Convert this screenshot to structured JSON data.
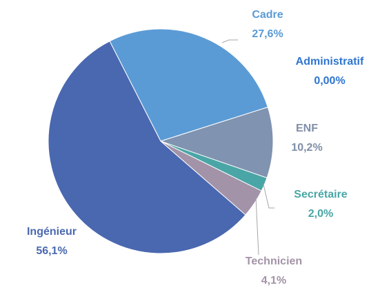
{
  "chart_data": {
    "type": "pie",
    "categories": [
      "Cadre",
      "Administratif",
      "ENF",
      "Secrétaire",
      "Technicien",
      "Ingénieur"
    ],
    "values": [
      27.6,
      0.0,
      10.2,
      2.0,
      4.1,
      56.1
    ],
    "value_labels": [
      "27,6%",
      "0,00%",
      "10,2%",
      "2,0%",
      "4,1%",
      "56,1%"
    ],
    "colors": [
      "#5b9bd5",
      "#3f7fc6",
      "#8093b0",
      "#4aa6a6",
      "#a393a8",
      "#4a68b0"
    ],
    "label_colors": [
      "#5b9bd5",
      "#2e75d0",
      "#7f8fa8",
      "#4aa6a6",
      "#a393a8",
      "#4a68b0"
    ]
  }
}
